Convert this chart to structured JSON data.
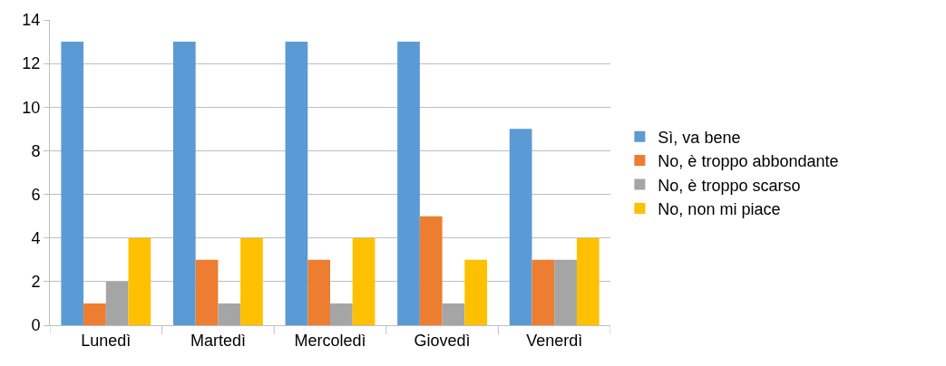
{
  "chart_data": {
    "type": "bar",
    "categories": [
      "Lunedì",
      "Martedì",
      "Mercoledì",
      "Giovedì",
      "Venerdì"
    ],
    "series": [
      {
        "name": "Sì, va bene",
        "color": "#5b9bd5",
        "values": [
          13,
          13,
          13,
          13,
          9
        ]
      },
      {
        "name": "No, è troppo abbondante",
        "color": "#ed7d31",
        "values": [
          1,
          3,
          3,
          5,
          3
        ]
      },
      {
        "name": "No, è troppo scarso",
        "color": "#a5a5a5",
        "values": [
          2,
          1,
          1,
          1,
          3
        ]
      },
      {
        "name": "No, non mi piace",
        "color": "#ffc000",
        "values": [
          4,
          4,
          4,
          3,
          4
        ]
      }
    ],
    "ylim": [
      0,
      14
    ],
    "yticks": [
      0,
      2,
      4,
      6,
      8,
      10,
      12,
      14
    ],
    "grid": "y",
    "legend": "right"
  }
}
